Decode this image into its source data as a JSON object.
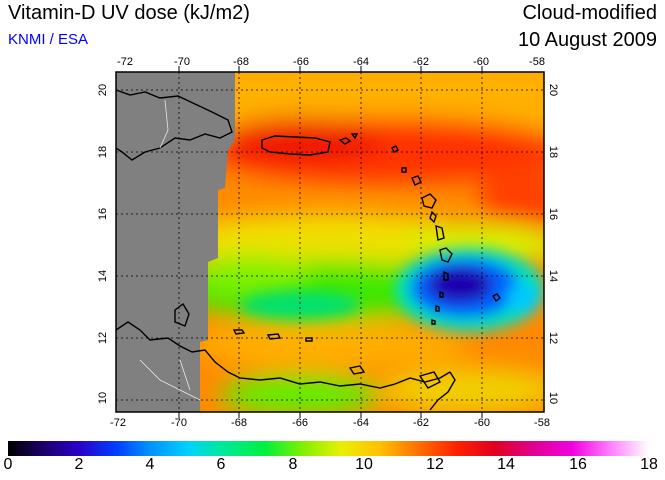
{
  "header": {
    "title": "Vitamin-D UV dose (kJ/m2)",
    "credit": "KNMI / ESA",
    "mode": "Cloud-modified",
    "date": "10 August 2009"
  },
  "map": {
    "lon_ticks": [
      "-72",
      "-70",
      "-68",
      "-66",
      "-64",
      "-62",
      "-60",
      "-58"
    ],
    "lat_ticks": [
      "20",
      "18",
      "16",
      "14",
      "12",
      "10"
    ],
    "lon_range": [
      -72,
      -58
    ],
    "lat_range": [
      9.5,
      20.5
    ],
    "colors": {
      "no_data": "#808080",
      "coastline": "#000000",
      "graticule": "#000000"
    }
  },
  "colorbar": {
    "labels": [
      "0",
      "2",
      "4",
      "6",
      "8",
      "10",
      "12",
      "14",
      "16",
      "18"
    ],
    "range": [
      0,
      18
    ]
  }
}
